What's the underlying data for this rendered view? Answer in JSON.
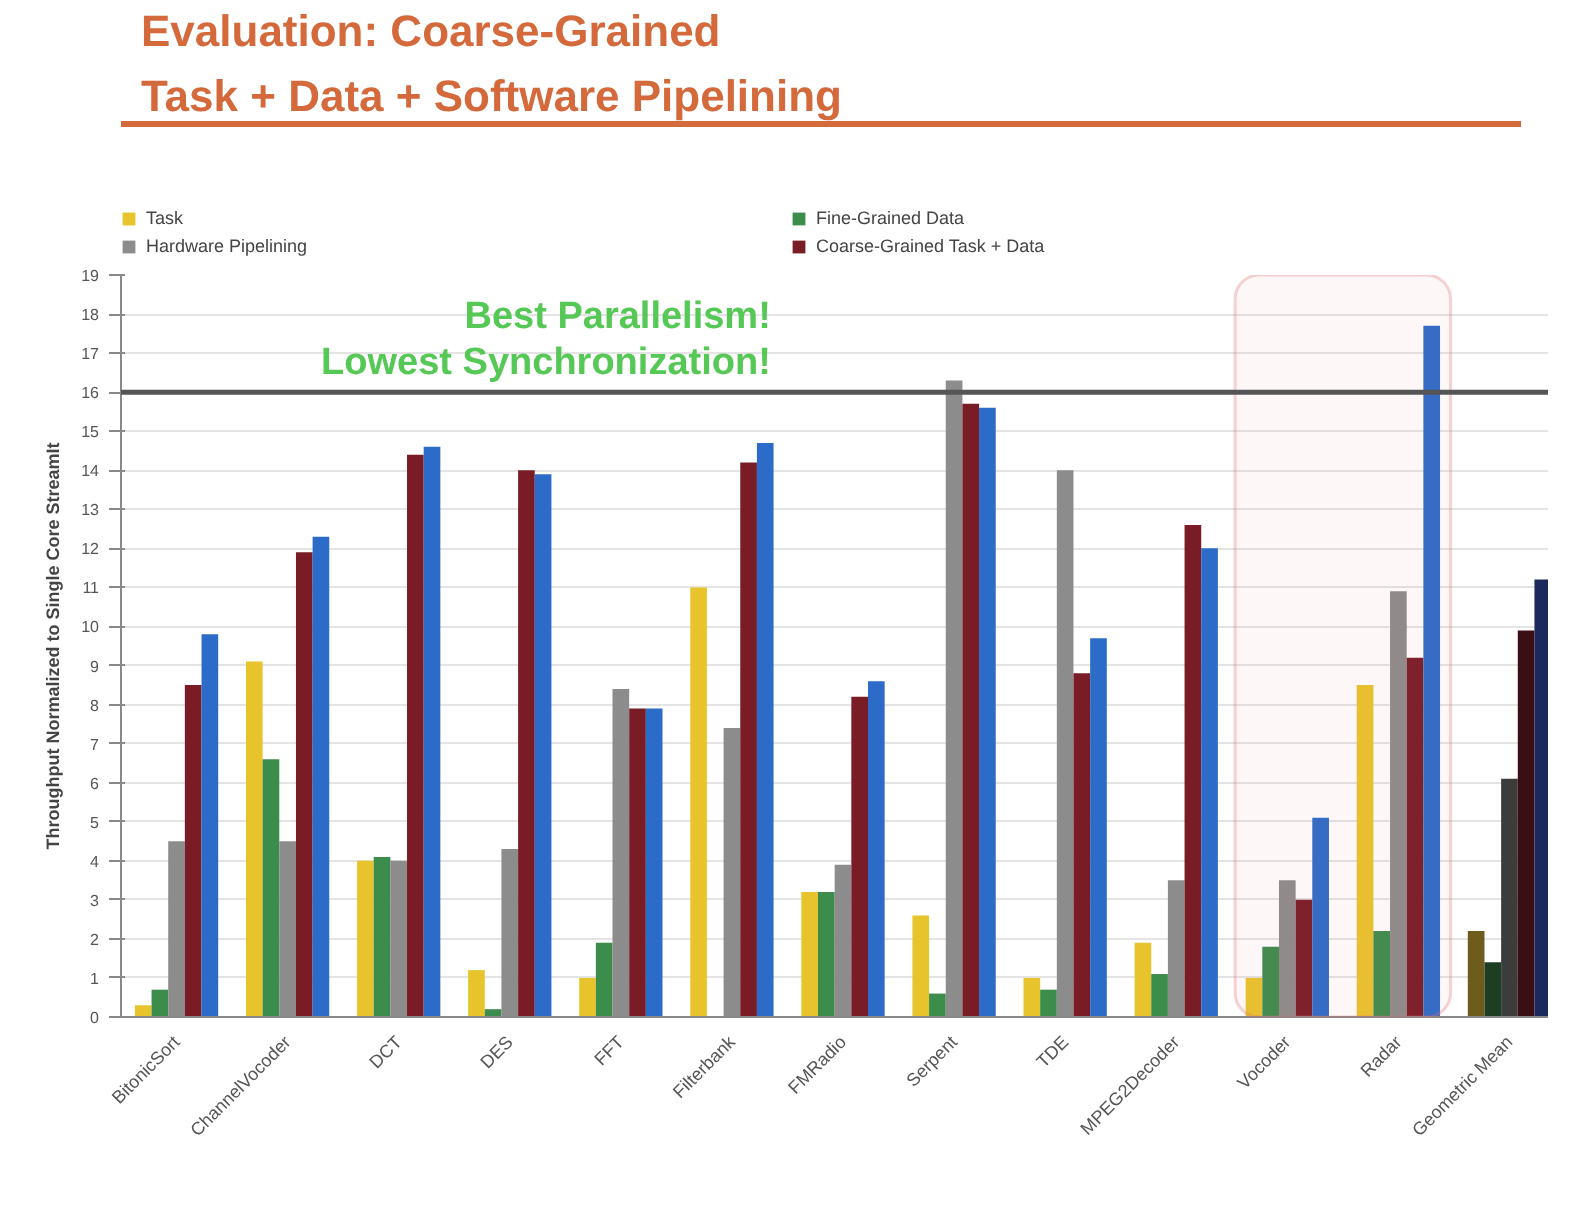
{
  "chart_data": {
    "type": "bar",
    "title": "Evaluation: Coarse-Grained\nTask + Data + Software Pipelining",
    "ylabel": "Throughput Normalized to Single Core StreamIt",
    "categories": [
      "BitonicSort",
      "ChannelVocoder",
      "DCT",
      "DES",
      "FFT",
      "Filterbank",
      "FMRadio",
      "Serpent",
      "TDE",
      "MPEG2Decoder",
      "Vocoder",
      "Radar",
      "Geometric Mean"
    ],
    "series": [
      {
        "name": "Task",
        "color": "#e8c42c",
        "colors": [
          "#e8c42c",
          "#e8c42c",
          "#e8c42c",
          "#e8c42c",
          "#e8c42c",
          "#e8c42c",
          "#e8c42c",
          "#e8c42c",
          "#e8c42c",
          "#e8c42c",
          "#e8c42c",
          "#e8c42c",
          "#6e5c1c"
        ],
        "values": [
          0.3,
          9.1,
          4.0,
          1.2,
          1.0,
          11.0,
          3.2,
          2.6,
          1.0,
          1.9,
          1.0,
          8.5,
          2.2
        ]
      },
      {
        "name": "Fine-Grained Data",
        "color": "#3c8c4c",
        "colors": [
          "#3c8c4c",
          "#3c8c4c",
          "#3c8c4c",
          "#3c8c4c",
          "#3c8c4c",
          "#3c8c4c",
          "#3c8c4c",
          "#3c8c4c",
          "#3c8c4c",
          "#3c8c4c",
          "#3c8c4c",
          "#3c8c4c",
          "#1e3e24"
        ],
        "values": [
          0.7,
          6.6,
          4.1,
          0.2,
          1.9,
          null,
          3.2,
          0.6,
          0.7,
          1.1,
          1.8,
          2.2,
          1.4
        ]
      },
      {
        "name": "Hardware Pipelining",
        "color": "#8c8c8c",
        "colors": [
          "#8c8c8c",
          "#8c8c8c",
          "#8c8c8c",
          "#8c8c8c",
          "#8c8c8c",
          "#8c8c8c",
          "#8c8c8c",
          "#8c8c8c",
          "#8c8c8c",
          "#8c8c8c",
          "#8c8c8c",
          "#8c8c8c",
          "#3c3c3c"
        ],
        "values": [
          4.5,
          4.5,
          4.0,
          4.3,
          8.4,
          7.4,
          3.9,
          16.3,
          14.0,
          3.5,
          3.5,
          10.9,
          6.1
        ]
      },
      {
        "name": "Coarse-Grained Task + Data",
        "color": "#7a1c26",
        "colors": [
          "#7a1c26",
          "#7a1c26",
          "#7a1c26",
          "#7a1c26",
          "#7a1c26",
          "#7a1c26",
          "#7a1c26",
          "#7a1c26",
          "#7a1c26",
          "#7a1c26",
          "#7a1c26",
          "#7a1c26",
          "#3a0e14"
        ],
        "values": [
          8.5,
          11.9,
          14.4,
          14.0,
          7.9,
          14.2,
          8.2,
          15.7,
          8.8,
          12.6,
          3.0,
          9.2,
          9.9
        ]
      },
      {
        "color": "#2c6cc8",
        "colors": [
          "#2c6cc8",
          "#2c6cc8",
          "#2c6cc8",
          "#2c6cc8",
          "#2c6cc8",
          "#2c6cc8",
          "#2c6cc8",
          "#2c6cc8",
          "#2c6cc8",
          "#2c6cc8",
          "#2c6cc8",
          "#2c6cc8",
          "#1a2a5c"
        ],
        "values": [
          9.8,
          12.3,
          14.6,
          13.9,
          7.9,
          14.7,
          8.6,
          15.6,
          9.7,
          12.0,
          5.1,
          17.7,
          11.2
        ]
      }
    ],
    "ylim": [
      0,
      19
    ],
    "yticks": [
      0,
      1,
      2,
      3,
      4,
      5,
      6,
      7,
      8,
      9,
      10,
      11,
      12,
      13,
      14,
      15,
      16,
      17,
      18,
      19
    ],
    "grid": "y",
    "legend": "top",
    "ref_lines": [
      {
        "axis": "y",
        "value": 16,
        "color": "#555555"
      }
    ],
    "bands": [
      {
        "axis": "x",
        "from": "Vocoder",
        "to": "Radar",
        "color": "#e07070"
      }
    ],
    "annotations": [
      "Best Parallelism!",
      "Lowest Synchronization!"
    ]
  }
}
